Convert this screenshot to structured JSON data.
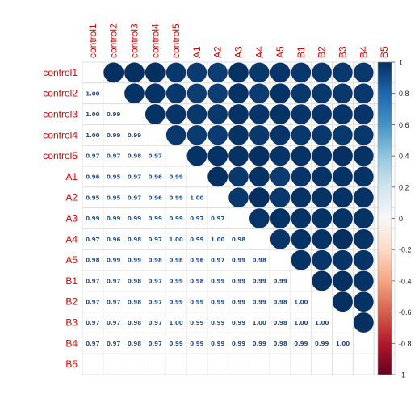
{
  "chart_data": {
    "type": "heatmap",
    "style": "corrplot-mixed",
    "variables": [
      "control1",
      "control2",
      "control3",
      "control4",
      "control5",
      "A1",
      "A2",
      "A3",
      "A4",
      "A5",
      "B1",
      "B2",
      "B3",
      "B4",
      "B5"
    ],
    "lower_triangle": [
      [],
      [
        1.0
      ],
      [
        1.0,
        0.99
      ],
      [
        1.0,
        0.99,
        0.99
      ],
      [
        0.97,
        0.97,
        0.98,
        0.97
      ],
      [
        0.96,
        0.95,
        0.97,
        0.96,
        0.99
      ],
      [
        0.95,
        0.95,
        0.97,
        0.96,
        0.99,
        1.0
      ],
      [
        0.99,
        0.99,
        0.99,
        0.99,
        0.99,
        0.97,
        0.97
      ],
      [
        0.97,
        0.96,
        0.98,
        0.97,
        1.0,
        0.99,
        1.0,
        0.98
      ],
      [
        0.98,
        0.99,
        0.99,
        0.98,
        0.98,
        0.96,
        0.97,
        0.99,
        0.98
      ],
      [
        0.97,
        0.97,
        0.98,
        0.97,
        0.99,
        0.98,
        0.99,
        0.99,
        0.99,
        0.99
      ],
      [
        0.97,
        0.97,
        0.98,
        0.97,
        0.99,
        0.99,
        0.99,
        0.99,
        0.99,
        0.98,
        1.0
      ],
      [
        0.97,
        0.97,
        0.98,
        0.97,
        1.0,
        0.99,
        0.99,
        0.99,
        1.0,
        0.98,
        1.0,
        1.0
      ],
      [
        0.97,
        0.97,
        0.98,
        0.97,
        0.99,
        0.99,
        0.99,
        0.99,
        0.99,
        0.98,
        0.99,
        0.99,
        1.0
      ],
      []
    ],
    "upper_circles_note": "Upper triangle shows circles for each pair; B5 has no values.",
    "colorbar": {
      "range": [
        -1,
        1
      ],
      "ticks": [
        "1",
        "0.8",
        "0.6",
        "0.4",
        "0.2",
        "0",
        "-0.2",
        "-0.4",
        "-0.6",
        "-0.8",
        "-1"
      ]
    },
    "label_color": "#e00000",
    "value_text_color": "#1f4e8c",
    "grid": true
  }
}
